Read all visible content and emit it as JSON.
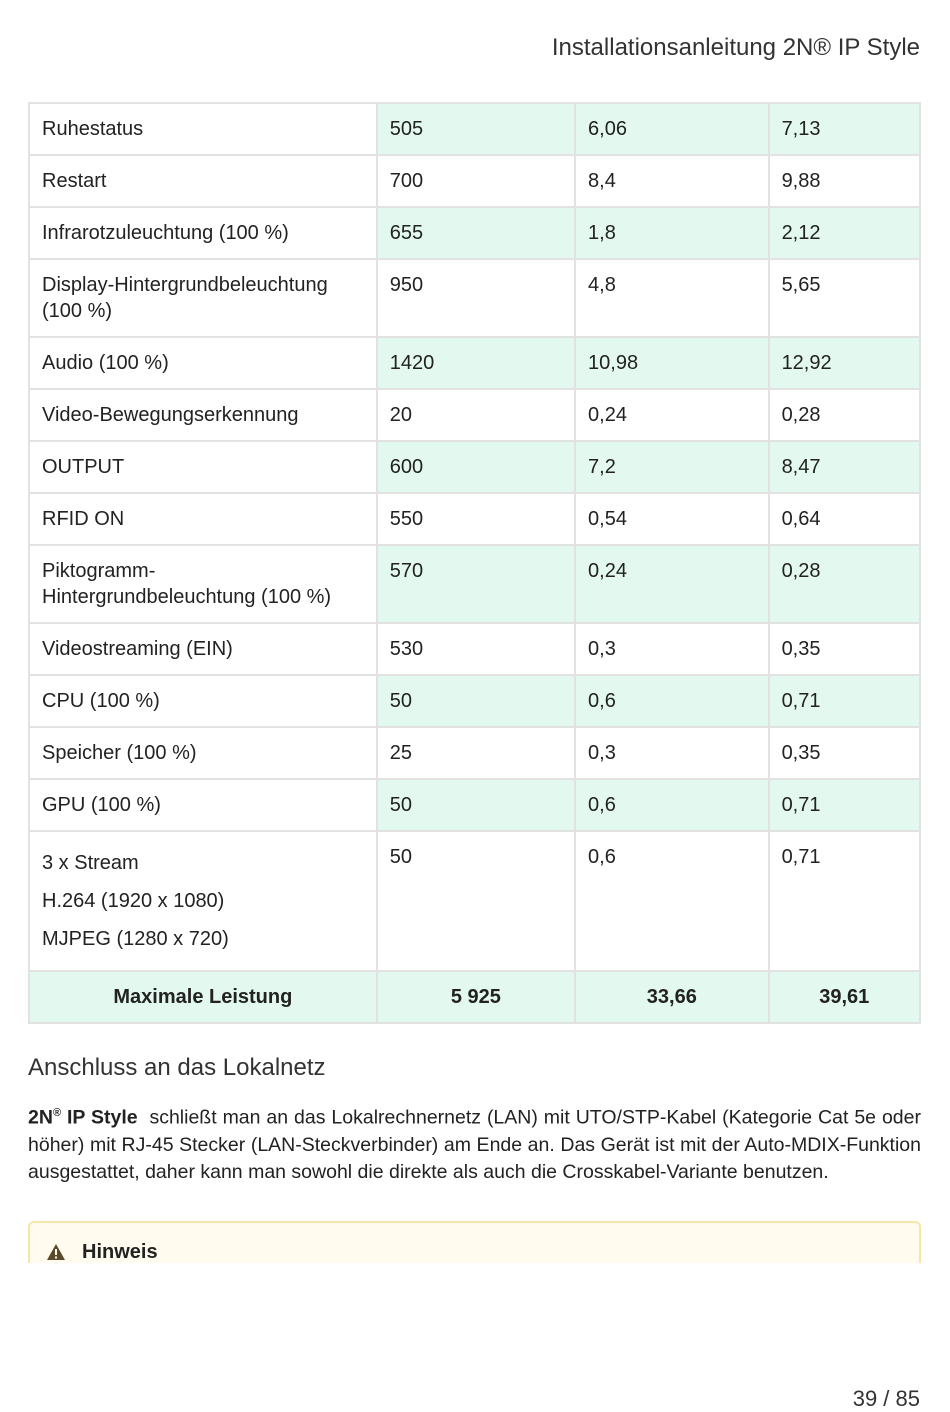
{
  "header": {
    "title": "Installationsanleitung 2N® IP Style"
  },
  "table": {
    "rows": [
      [
        "Ruhestatus",
        "505",
        "6,06",
        "7,13"
      ],
      [
        "Restart",
        "700",
        "8,4",
        "9,88"
      ],
      [
        "Infrarotzuleuchtung (100 %)",
        "655",
        "1,8",
        "2,12"
      ],
      [
        "Display-Hintergrundbeleuchtung (100 %)",
        "950",
        "4,8",
        "5,65"
      ],
      [
        "Audio (100 %)",
        "1420",
        "10,98",
        "12,92"
      ],
      [
        "Video-Bewegungserkennung",
        "20",
        "0,24",
        "0,28"
      ],
      [
        "OUTPUT",
        "600",
        "7,2",
        "8,47"
      ],
      [
        "RFID ON",
        "550",
        "0,54",
        "0,64"
      ],
      [
        "Piktogramm-Hintergrundbeleuchtung (100 %)",
        "570",
        "0,24",
        "0,28"
      ],
      [
        "Videostreaming (EIN)",
        "530",
        "0,3",
        "0,35"
      ],
      [
        "CPU (100 %)",
        "50",
        "0,6",
        "0,71"
      ],
      [
        "Speicher (100 %)",
        "25",
        "0,3",
        "0,35"
      ],
      [
        "GPU (100 %)",
        "50",
        "0,6",
        "0,71"
      ],
      [
        [
          "3 x Stream",
          "H.264 (1920 x 1080)",
          "MJPEG (1280 x 720)"
        ],
        "50",
        "0,6",
        "0,71"
      ]
    ],
    "total": [
      "Maximale Leistung",
      "5 925",
      "33,66",
      "39,61"
    ]
  },
  "section": {
    "heading": "Anschluss an das Lokalnetz",
    "brand_main": "2N",
    "brand_sup": "®",
    "brand_rest": "IP Style",
    "text": "schließt man an das Lokalrechnernetz (LAN) mit UTO/STP-Kabel (Kategorie Cat 5e oder höher) mit RJ-45 Stecker (LAN-Steckverbinder) am Ende an. Das Gerät ist mit der Auto-MDIX-Funktion ausgestattet, daher kann man sowohl die direkte als auch die Crosskabel-Variante benutzen."
  },
  "note": {
    "title": "Hinweis"
  },
  "footer": {
    "page": "39 / 85"
  }
}
